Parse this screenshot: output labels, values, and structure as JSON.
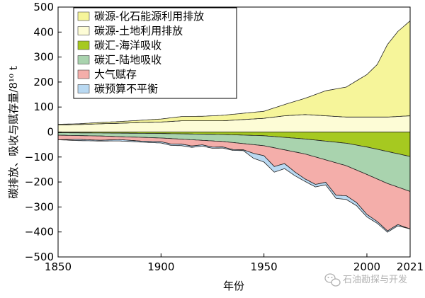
{
  "chart_data": {
    "type": "area",
    "xlabel": "年份",
    "ylabel": "碳排放、吸收与赋存量/8¹⁰ t",
    "xlim": [
      1850,
      2021
    ],
    "ylim": [
      -500,
      500
    ],
    "x_ticks": [
      "1850",
      "1900",
      "1950",
      "2000",
      "2021"
    ],
    "y_ticks": [
      "500",
      "400",
      "300",
      "200",
      "100",
      "0",
      "−100",
      "−200",
      "−300",
      "−400",
      "−500"
    ],
    "legend_position": "top-left",
    "series": [
      {
        "name": "碳源-化石能源利用排放",
        "color": "#f6f59a",
        "x": [
          1850,
          1860,
          1870,
          1880,
          1890,
          1900,
          1910,
          1920,
          1930,
          1940,
          1950,
          1960,
          1970,
          1980,
          1990,
          2000,
          2005,
          2010,
          2015,
          2021
        ],
        "values": [
          3,
          3,
          5,
          7,
          9,
          12,
          17,
          18,
          22,
          25,
          28,
          45,
          65,
          100,
          120,
          170,
          210,
          290,
          340,
          380
        ]
      },
      {
        "name": "碳源-土地利用排放",
        "color": "#fdfcd6",
        "x": [
          1850,
          1860,
          1870,
          1880,
          1890,
          1900,
          1910,
          1920,
          1930,
          1940,
          1950,
          1960,
          1970,
          1980,
          1990,
          2000,
          2010,
          2021
        ],
        "values": [
          28,
          30,
          33,
          35,
          38,
          40,
          45,
          45,
          45,
          50,
          55,
          65,
          70,
          65,
          60,
          60,
          60,
          65
        ]
      },
      {
        "name": "碳汇-海洋吸收",
        "color": "#a6c920",
        "x": [
          1850,
          1870,
          1900,
          1930,
          1950,
          1970,
          1990,
          2000,
          2010,
          2021
        ],
        "values": [
          -3,
          -4,
          -6,
          -10,
          -15,
          -28,
          -45,
          -60,
          -78,
          -98
        ]
      },
      {
        "name": "碳汇-陆地吸收",
        "color": "#a9d3ae",
        "x": [
          1850,
          1870,
          1900,
          1930,
          1950,
          1970,
          1990,
          2000,
          2010,
          2021
        ],
        "values": [
          -10,
          -12,
          -18,
          -28,
          -40,
          -60,
          -90,
          -110,
          -128,
          -140
        ]
      },
      {
        "name": "大气赋存",
        "color": "#f4aeaa",
        "x": [
          1850,
          1860,
          1870,
          1880,
          1890,
          1900,
          1905,
          1910,
          1915,
          1920,
          1925,
          1930,
          1935,
          1940,
          1945,
          1950,
          1955,
          1960,
          1965,
          1970,
          1975,
          1980,
          1985,
          1990,
          1995,
          2000,
          2005,
          2010,
          2015,
          2021
        ],
        "values": [
          -18,
          -15,
          -17,
          -12,
          -15,
          -15,
          -22,
          -20,
          -25,
          -18,
          -25,
          -22,
          -28,
          -25,
          -35,
          -40,
          -75,
          -55,
          -80,
          -100,
          -110,
          -90,
          -130,
          -120,
          -130,
          -160,
          -170,
          -190,
          -150,
          -150
        ]
      },
      {
        "name": "碳预算不平衡",
        "color": "#b9d9f2",
        "x": [
          1850,
          1860,
          1870,
          1880,
          1890,
          1900,
          1910,
          1920,
          1930,
          1940,
          1945,
          1950,
          1960,
          1970,
          1980,
          1990,
          2000,
          2010,
          2015,
          2021
        ],
        "values": [
          0,
          -5,
          -3,
          -5,
          -4,
          -5,
          -6,
          -5,
          -4,
          -3,
          -20,
          -25,
          -20,
          -10,
          -10,
          -15,
          -10,
          -5,
          -5,
          0
        ]
      }
    ]
  },
  "watermark": {
    "icon": "wechat-icon",
    "text": "石油勘探与开发"
  }
}
